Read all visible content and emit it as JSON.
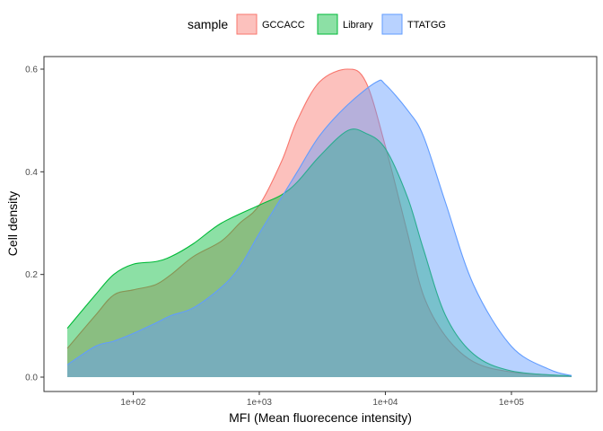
{
  "chart_data": {
    "type": "area",
    "title": "",
    "xlabel": "MFI (Mean fluorecence intensity)",
    "ylabel": "Cell density",
    "x_scale": "log10",
    "xlim": [
      30,
      300000
    ],
    "ylim": [
      0,
      0.6
    ],
    "x_ticks": [
      100,
      1000,
      10000,
      100000
    ],
    "x_tick_labels": [
      "1e+02",
      "1e+03",
      "1e+04",
      "1e+05"
    ],
    "y_ticks": [
      0.0,
      0.2,
      0.4,
      0.6
    ],
    "y_tick_labels": [
      "0.0",
      "0.2",
      "0.4",
      "0.6"
    ],
    "grid": false,
    "legend": {
      "title": "sample",
      "placement": "top",
      "entries": [
        "GCCACC",
        "Library",
        "TTATGG"
      ]
    },
    "series": [
      {
        "name": "GCCACC",
        "color": "#F8766D",
        "points": [
          [
            30,
            0.056
          ],
          [
            50,
            0.12
          ],
          [
            70,
            0.16
          ],
          [
            100,
            0.17
          ],
          [
            150,
            0.18
          ],
          [
            200,
            0.2
          ],
          [
            300,
            0.235
          ],
          [
            500,
            0.265
          ],
          [
            700,
            0.3
          ],
          [
            1000,
            0.335
          ],
          [
            1500,
            0.42
          ],
          [
            2000,
            0.5
          ],
          [
            3000,
            0.575
          ],
          [
            5000,
            0.6
          ],
          [
            7000,
            0.575
          ],
          [
            10000,
            0.45
          ],
          [
            15000,
            0.28
          ],
          [
            20000,
            0.16
          ],
          [
            30000,
            0.08
          ],
          [
            50000,
            0.03
          ],
          [
            100000,
            0.01
          ],
          [
            300000,
            0.002
          ]
        ]
      },
      {
        "name": "Library",
        "color": "#00BA38",
        "points": [
          [
            30,
            0.095
          ],
          [
            50,
            0.16
          ],
          [
            70,
            0.2
          ],
          [
            100,
            0.22
          ],
          [
            150,
            0.225
          ],
          [
            200,
            0.235
          ],
          [
            300,
            0.26
          ],
          [
            500,
            0.3
          ],
          [
            1000,
            0.335
          ],
          [
            1500,
            0.355
          ],
          [
            2000,
            0.38
          ],
          [
            3000,
            0.43
          ],
          [
            5000,
            0.48
          ],
          [
            7000,
            0.475
          ],
          [
            10000,
            0.445
          ],
          [
            15000,
            0.35
          ],
          [
            20000,
            0.25
          ],
          [
            30000,
            0.12
          ],
          [
            50000,
            0.045
          ],
          [
            100000,
            0.012
          ],
          [
            300000,
            0.002
          ]
        ]
      },
      {
        "name": "TTATGG",
        "color": "#619CFF",
        "points": [
          [
            30,
            0.024
          ],
          [
            50,
            0.06
          ],
          [
            70,
            0.07
          ],
          [
            100,
            0.085
          ],
          [
            150,
            0.105
          ],
          [
            200,
            0.12
          ],
          [
            300,
            0.135
          ],
          [
            500,
            0.175
          ],
          [
            700,
            0.215
          ],
          [
            1000,
            0.28
          ],
          [
            1500,
            0.35
          ],
          [
            2000,
            0.4
          ],
          [
            3000,
            0.47
          ],
          [
            5000,
            0.53
          ],
          [
            8500,
            0.575
          ],
          [
            10000,
            0.57
          ],
          [
            15000,
            0.52
          ],
          [
            20000,
            0.47
          ],
          [
            30000,
            0.34
          ],
          [
            50000,
            0.18
          ],
          [
            100000,
            0.06
          ],
          [
            200000,
            0.015
          ],
          [
            300000,
            0.003
          ]
        ]
      }
    ]
  }
}
